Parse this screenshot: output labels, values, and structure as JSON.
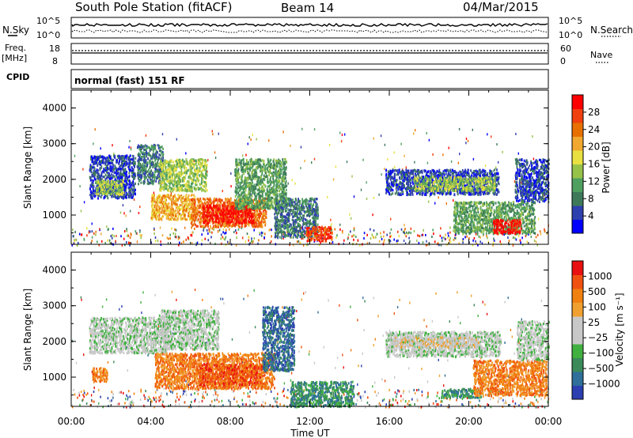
{
  "header": {
    "title": "South Pole Station (fitACF)",
    "beam": "Beam 14",
    "date": "04/Mar/2015"
  },
  "status_panels": {
    "nsky_label": "N.Sky",
    "nsearch_label": "N.Search",
    "noise_tick_high": "10^5",
    "noise_tick_low": "10^0",
    "freq_label": "Freq.",
    "freq_unit": "[MHz]",
    "freq_ticks": [
      "18",
      "8"
    ],
    "nave_label": "Nave",
    "nave_ticks": [
      "60",
      "0"
    ],
    "cpid_label": "CPID",
    "cpid_text": "normal (fast) 151 RF"
  },
  "chart_data": [
    {
      "type": "heatmap",
      "quantity": "power",
      "ylabel": "Slant Range [km]",
      "xlabel": "Time UT",
      "x_ticks": [
        "00:00",
        "04:00",
        "08:00",
        "12:00",
        "16:00",
        "20:00",
        "00:00"
      ],
      "y_ticks": [
        1000,
        2000,
        3000,
        4000
      ],
      "ylim": [
        180,
        4500
      ],
      "xlim_hours": [
        0,
        24
      ],
      "colorbar_label": "Power [dB]",
      "colorbar_ticks": [
        "28",
        "24",
        "20",
        "16",
        "12",
        "8",
        "4"
      ],
      "colors": [
        "#0000ff",
        "#2e3fae",
        "#3e7a5a",
        "#4fa060",
        "#96c24a",
        "#e8e040",
        "#f0a830",
        "#e87000",
        "#f04010",
        "#ff0000"
      ],
      "regions": [
        {
          "t0": 0.9,
          "t1": 3.2,
          "r0": 1500,
          "r1": 2700,
          "level": 1
        },
        {
          "t0": 1.2,
          "t1": 2.6,
          "r0": 1600,
          "r1": 2000,
          "level": 4
        },
        {
          "t0": 3.3,
          "t1": 4.6,
          "r0": 1900,
          "r1": 3000,
          "level": 2
        },
        {
          "t0": 4.4,
          "t1": 6.8,
          "r0": 1700,
          "r1": 2600,
          "level": 4
        },
        {
          "t0": 4.0,
          "t1": 6.2,
          "r0": 900,
          "r1": 1600,
          "level": 6
        },
        {
          "t0": 6.0,
          "t1": 9.8,
          "r0": 700,
          "r1": 1500,
          "level": 7
        },
        {
          "t0": 6.6,
          "t1": 9.2,
          "r0": 800,
          "r1": 1300,
          "level": 9
        },
        {
          "t0": 8.2,
          "t1": 10.8,
          "r0": 1200,
          "r1": 2600,
          "level": 3
        },
        {
          "t0": 10.2,
          "t1": 12.4,
          "r0": 400,
          "r1": 1500,
          "level": 2
        },
        {
          "t0": 11.8,
          "t1": 13.1,
          "r0": 300,
          "r1": 700,
          "level": 8
        },
        {
          "t0": 15.8,
          "t1": 21.5,
          "r0": 1600,
          "r1": 2300,
          "level": 1
        },
        {
          "t0": 17.2,
          "t1": 21.3,
          "r0": 1700,
          "r1": 2100,
          "level": 4
        },
        {
          "t0": 19.2,
          "t1": 23.3,
          "r0": 500,
          "r1": 1400,
          "level": 3
        },
        {
          "t0": 21.2,
          "t1": 22.6,
          "r0": 500,
          "r1": 900,
          "level": 9
        },
        {
          "t0": 22.3,
          "t1": 24.0,
          "r0": 1400,
          "r1": 2600,
          "level": 1
        }
      ]
    },
    {
      "type": "heatmap",
      "quantity": "velocity",
      "ylabel": "Slant Range [km]",
      "xlabel": "Time UT",
      "x_ticks": [
        "00:00",
        "04:00",
        "08:00",
        "12:00",
        "16:00",
        "20:00",
        "00:00"
      ],
      "y_ticks": [
        1000,
        2000,
        3000,
        4000
      ],
      "ylim": [
        180,
        4500
      ],
      "xlim_hours": [
        0,
        24
      ],
      "colorbar_label": "Velocity [m s⁻¹]",
      "colorbar_ticks": [
        "1000",
        "500",
        "100",
        "25",
        "−25",
        "−100",
        "−500",
        "−1000"
      ],
      "colors": [
        "#2b3fb0",
        "#2f6f9a",
        "#3a8a5a",
        "#40b040",
        "#c8c8c8",
        "#c8c8c8",
        "#f0a030",
        "#f08010",
        "#f05010",
        "#e81010"
      ],
      "regions": [
        {
          "t0": 0.9,
          "t1": 4.8,
          "r0": 1700,
          "r1": 2700,
          "level": 4
        },
        {
          "t0": 4.4,
          "t1": 7.4,
          "r0": 1800,
          "r1": 2900,
          "level": 4
        },
        {
          "t0": 1.0,
          "t1": 1.8,
          "r0": 900,
          "r1": 1300,
          "level": 7
        },
        {
          "t0": 4.2,
          "t1": 10.2,
          "r0": 700,
          "r1": 1700,
          "level": 7
        },
        {
          "t0": 6.4,
          "t1": 9.6,
          "r0": 800,
          "r1": 1400,
          "level": 8
        },
        {
          "t0": 9.6,
          "t1": 11.2,
          "r0": 1200,
          "r1": 3000,
          "level": 1
        },
        {
          "t0": 11.0,
          "t1": 14.2,
          "r0": 200,
          "r1": 900,
          "level": 2
        },
        {
          "t0": 15.8,
          "t1": 21.6,
          "r0": 1600,
          "r1": 2300,
          "level": 4
        },
        {
          "t0": 16.2,
          "t1": 20.5,
          "r0": 1850,
          "r1": 2150,
          "level": 5
        },
        {
          "t0": 18.6,
          "t1": 20.6,
          "r0": 450,
          "r1": 700,
          "level": 2
        },
        {
          "t0": 20.2,
          "t1": 23.9,
          "r0": 500,
          "r1": 1500,
          "level": 7
        },
        {
          "t0": 22.4,
          "t1": 24.0,
          "r0": 1500,
          "r1": 2600,
          "level": 4
        }
      ]
    }
  ]
}
